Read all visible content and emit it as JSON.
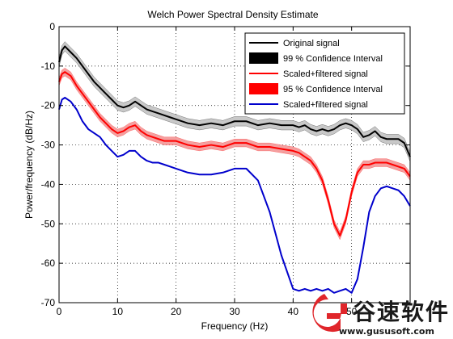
{
  "chart_data": {
    "type": "line",
    "title": "Welch Power Spectral Density Estimate",
    "xlabel": "Frequency (Hz)",
    "ylabel": "Power/frequency (dB/Hz)",
    "xlim": [
      0,
      60
    ],
    "ylim": [
      -70,
      0
    ],
    "xticks": [
      0,
      10,
      20,
      30,
      40,
      50
    ],
    "yticks": [
      0,
      -10,
      -20,
      -30,
      -40,
      -50,
      -60,
      -70
    ],
    "grid": true,
    "legend_position": "top-right",
    "legend": [
      {
        "label": "Original signal",
        "kind": "line",
        "color": "#000000"
      },
      {
        "label": "99 % Confidence Interval",
        "kind": "patch",
        "color": "#000000"
      },
      {
        "label": "Scaled+filtered signal",
        "kind": "line",
        "color": "#ff0000"
      },
      {
        "label": "95 % Confidence Interval",
        "kind": "patch",
        "color": "#ff0000"
      },
      {
        "label": "Scaled+filtered signal",
        "kind": "line",
        "color": "#0000cc"
      }
    ],
    "x": [
      0,
      0.5,
      1,
      2,
      3,
      4,
      5,
      6,
      7,
      8,
      9,
      10,
      11,
      12,
      13,
      14,
      15,
      16,
      17,
      18,
      19,
      20,
      22,
      24,
      26,
      28,
      30,
      32,
      34,
      36,
      38,
      40,
      41,
      42,
      43,
      44,
      45,
      46,
      47,
      48,
      49,
      50,
      51,
      52,
      53,
      54,
      55,
      56,
      57,
      58,
      59,
      60
    ],
    "series": [
      {
        "name": "Original signal",
        "color": "#000000",
        "band_color": "#c8c8c8",
        "band": 1.2,
        "values": [
          -9,
          -6,
          -5,
          -6.5,
          -8,
          -10,
          -12,
          -14,
          -15.5,
          -17,
          -18.5,
          -20,
          -20.5,
          -20,
          -19,
          -20,
          -21,
          -21.5,
          -22,
          -22.5,
          -23,
          -23.5,
          -24.5,
          -25,
          -24.5,
          -25,
          -24,
          -24,
          -25,
          -24.5,
          -25,
          -25,
          -25.5,
          -25,
          -26,
          -26.5,
          -26,
          -26.5,
          -26,
          -25,
          -24.5,
          -25,
          -26,
          -28,
          -27.5,
          -26.5,
          -28,
          -28.5,
          -28.5,
          -28.5,
          -29.5,
          -33
        ]
      },
      {
        "name": "Scaled+filtered signal",
        "color": "#ff0000",
        "band_color": "#f4a0a0",
        "band": 1.0,
        "values": [
          -14,
          -12,
          -11.5,
          -12.5,
          -15,
          -17,
          -19,
          -21,
          -23,
          -24.5,
          -26,
          -27,
          -26.5,
          -25.5,
          -25,
          -26.5,
          -27.5,
          -28,
          -28.5,
          -29,
          -29,
          -29,
          -30,
          -30.5,
          -30,
          -30.5,
          -29.5,
          -29.5,
          -30.5,
          -30.5,
          -31,
          -31.5,
          -32,
          -33,
          -34,
          -36,
          -39,
          -44,
          -50,
          -53,
          -49,
          -42,
          -37,
          -35,
          -35,
          -34.5,
          -34.5,
          -34.5,
          -35,
          -35.5,
          -36,
          -38
        ]
      },
      {
        "name": "Scaled+filtered signal",
        "color": "#0000cc",
        "band_color": null,
        "band": 0,
        "values": [
          -21,
          -18.5,
          -18,
          -19,
          -21,
          -24,
          -26,
          -27,
          -28,
          -30,
          -31.5,
          -33,
          -32.5,
          -31.5,
          -31.5,
          -33,
          -34,
          -34.5,
          -34.5,
          -35,
          -35.5,
          -36,
          -37,
          -37.5,
          -37.5,
          -37,
          -36,
          -36,
          -39,
          -47,
          -58,
          -66.5,
          -67,
          -66.5,
          -67,
          -66.5,
          -67,
          -66.5,
          -67.5,
          -67,
          -66.5,
          -67.5,
          -64,
          -56,
          -47,
          -43,
          -41,
          -40.5,
          -41,
          -41.5,
          -43,
          -45.5
        ]
      }
    ]
  },
  "watermark": {
    "text_cn": "谷速软件",
    "url": "www.gususoft.com"
  }
}
